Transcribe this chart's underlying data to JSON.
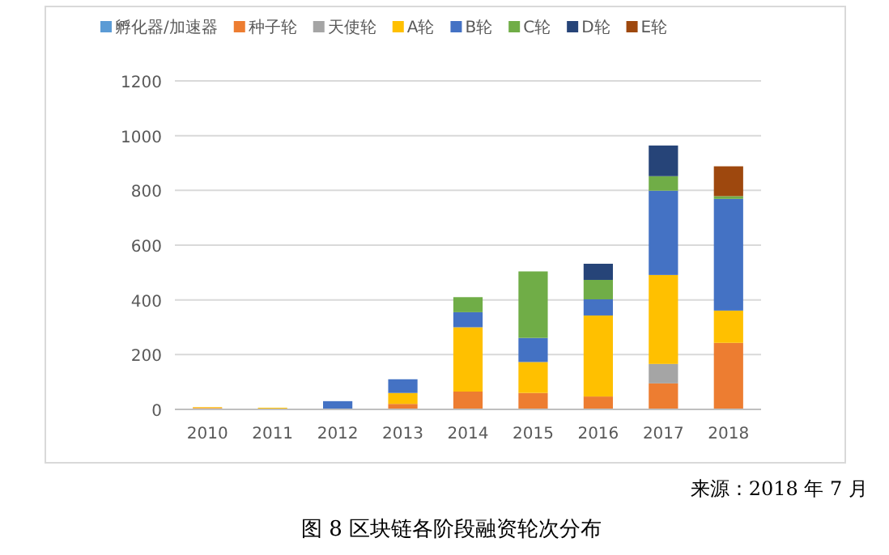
{
  "chart_data": {
    "type": "bar",
    "stacked": true,
    "categories": [
      "2010",
      "2011",
      "2012",
      "2013",
      "2014",
      "2015",
      "2016",
      "2017",
      "2018"
    ],
    "series": [
      {
        "name": "孵化器/加速器",
        "color": "#5b9bd5",
        "values": [
          0,
          0,
          0,
          0,
          0,
          0,
          0,
          0,
          0
        ]
      },
      {
        "name": "种子轮",
        "color": "#ed7d31",
        "values": [
          5,
          3,
          0,
          20,
          65,
          60,
          47,
          95,
          243
        ]
      },
      {
        "name": "天使轮",
        "color": "#a5a5a5",
        "values": [
          0,
          0,
          0,
          0,
          0,
          null,
          0,
          71,
          0
        ]
      },
      {
        "name": "A轮",
        "color": "#ffc000",
        "values": [
          3,
          3,
          0,
          40,
          235,
          113,
          296,
          325,
          118
        ]
      },
      {
        "name": "B轮",
        "color": "#4472c4",
        "values": [
          0,
          0,
          30,
          50,
          55,
          88,
          59,
          308,
          408
        ]
      },
      {
        "name": "C轮",
        "color": "#70ad47",
        "values": [
          0,
          0,
          0,
          0,
          55,
          243,
          71,
          53,
          10
        ]
      },
      {
        "name": "D轮",
        "color": "#264478",
        "values": [
          0,
          0,
          0,
          0,
          0,
          0,
          59,
          112,
          0
        ]
      },
      {
        "name": "E轮",
        "color": "#9e480e",
        "values": [
          0,
          0,
          0,
          0,
          0,
          0,
          0,
          0,
          109
        ]
      }
    ],
    "ylim": [
      0,
      1200
    ],
    "yticks": [
      0,
      200,
      400,
      600,
      800,
      1000,
      1200
    ],
    "grid": "y",
    "legend": "top",
    "annotations": [
      "来源：2018 年 7 月",
      "图 8    区块链各阶段融资轮次分布"
    ]
  }
}
